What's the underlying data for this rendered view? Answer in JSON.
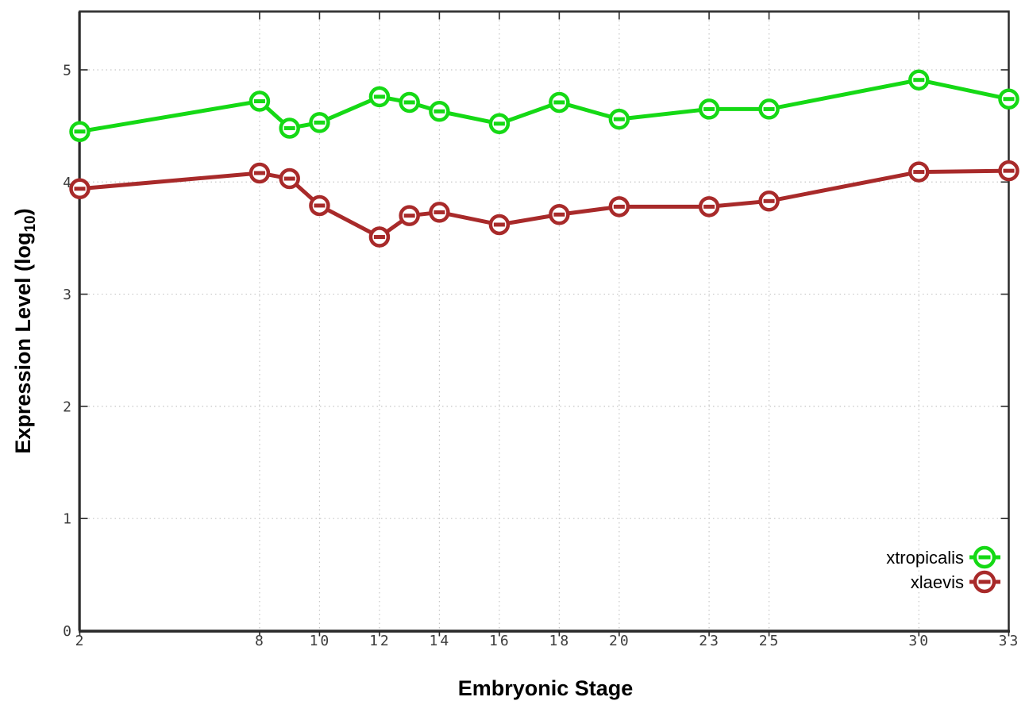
{
  "chart_data": {
    "type": "line",
    "title": "",
    "xlabel": "Embryonic Stage",
    "ylabel": {
      "prefix": "Expression Level (log",
      "sub": "10",
      "suffix": ")"
    },
    "x": [
      2,
      8,
      9,
      10,
      12,
      13,
      14,
      16,
      18,
      20,
      23,
      25,
      30,
      33
    ],
    "series": [
      {
        "name": "xtropicalis",
        "color": "#15d915",
        "values": [
          4.45,
          4.72,
          4.48,
          4.53,
          4.76,
          4.71,
          4.63,
          4.52,
          4.71,
          4.56,
          4.65,
          4.65,
          4.91,
          4.74
        ]
      },
      {
        "name": "xlaevis",
        "color": "#a82a2a",
        "values": [
          3.94,
          4.08,
          4.03,
          3.79,
          3.51,
          3.7,
          3.73,
          3.62,
          3.71,
          3.78,
          3.78,
          3.83,
          4.09,
          4.1
        ]
      }
    ],
    "x_ticks": [
      2,
      8,
      10,
      12,
      14,
      16,
      18,
      20,
      23,
      25,
      30,
      33
    ],
    "y_ticks": [
      0,
      1,
      2,
      3,
      4,
      5
    ],
    "xlim": [
      2,
      33
    ],
    "ylim": [
      0,
      5.52
    ],
    "grid": true,
    "legend_position": "bottom-right",
    "colors": {
      "border": "#2b2b2b",
      "grid": "#c6c6c6",
      "tick_text": "#3c3c3c",
      "marker_fill": "#ffffff"
    }
  }
}
